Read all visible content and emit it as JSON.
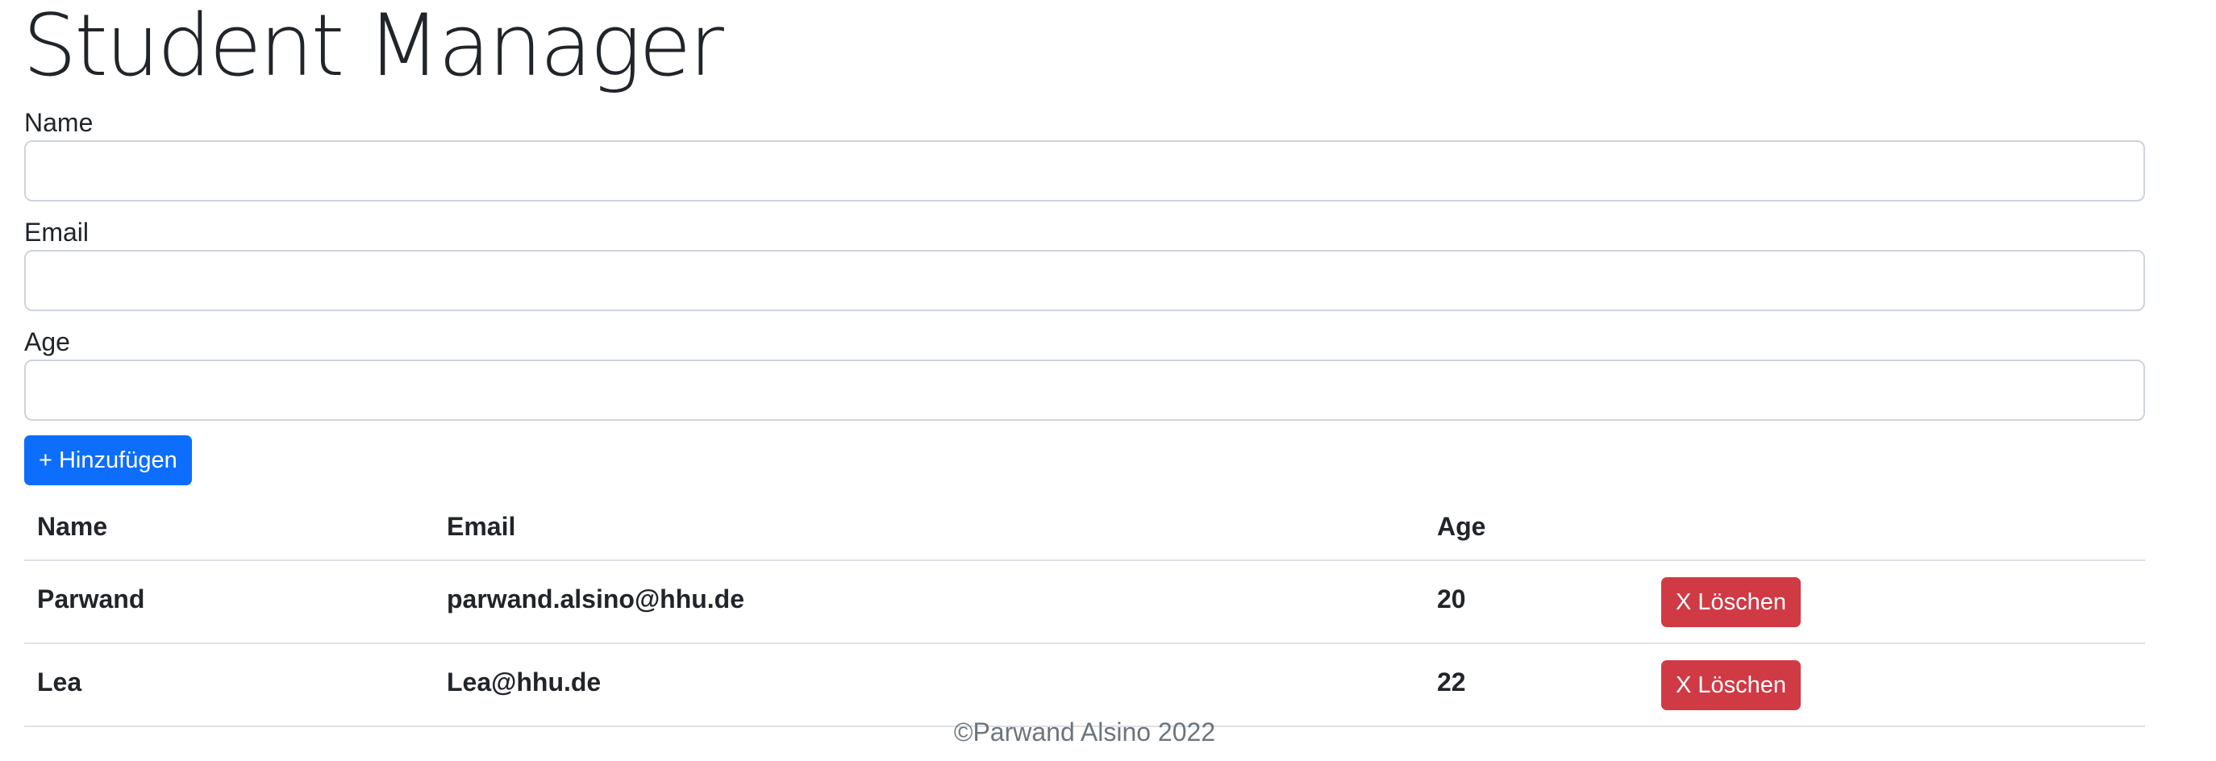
{
  "page": {
    "title": "Student Manager"
  },
  "form": {
    "name": {
      "label": "Name",
      "value": "",
      "placeholder": ""
    },
    "email": {
      "label": "Email",
      "value": "",
      "placeholder": ""
    },
    "age": {
      "label": "Age",
      "value": "",
      "placeholder": ""
    },
    "add_button_label": "+ Hinzufügen"
  },
  "table": {
    "headers": {
      "name": "Name",
      "email": "Email",
      "age": "Age",
      "actions": ""
    },
    "rows": [
      {
        "name": "Parwand",
        "email": "parwand.alsino@hhu.de",
        "age": "20",
        "delete_label": "X Löschen"
      },
      {
        "name": "Lea",
        "email": "Lea@hhu.de",
        "age": "22",
        "delete_label": "X Löschen"
      }
    ]
  },
  "footer": {
    "text": "©Parwand Alsino 2022"
  },
  "colors": {
    "primary": "#0d6efd",
    "danger": "#d03a45",
    "text": "#212529",
    "muted": "#6c757d",
    "border": "#dee2e6"
  }
}
